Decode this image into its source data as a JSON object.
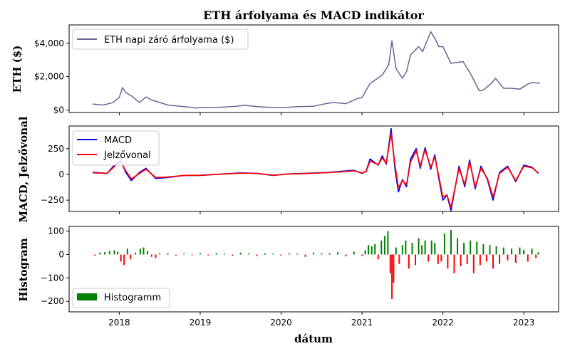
{
  "chart_data": [
    {
      "type": "line",
      "title": "ETH árfolyama és MACD indikátor",
      "ylabel": "ETH ($)",
      "ylim": [
        -150,
        5100
      ],
      "y_ticks": [
        "$0",
        "$2,000",
        "$4,000"
      ],
      "y_tick_values": [
        0,
        2000,
        4000
      ],
      "legend_position": "top-left",
      "series": [
        {
          "name": "ETH napi záró árfolyama ($)",
          "color": "#6b6394",
          "x": [
            2017.67,
            2017.8,
            2017.92,
            2018.0,
            2018.04,
            2018.08,
            2018.15,
            2018.25,
            2018.33,
            2018.4,
            2018.5,
            2018.6,
            2018.75,
            2018.85,
            2018.95,
            2019.0,
            2019.2,
            2019.45,
            2019.55,
            2019.7,
            2019.85,
            2020.0,
            2020.2,
            2020.4,
            2020.55,
            2020.65,
            2020.8,
            2020.95,
            2021.0,
            2021.1,
            2021.15,
            2021.25,
            2021.33,
            2021.37,
            2021.42,
            2021.5,
            2021.55,
            2021.6,
            2021.7,
            2021.75,
            2021.85,
            2021.9,
            2021.95,
            2022.0,
            2022.1,
            2022.25,
            2022.35,
            2022.45,
            2022.5,
            2022.6,
            2022.65,
            2022.75,
            2022.85,
            2022.95,
            2023.05,
            2023.1,
            2023.2
          ],
          "values": [
            360,
            300,
            440,
            750,
            1350,
            1050,
            850,
            450,
            780,
            600,
            450,
            300,
            220,
            180,
            120,
            140,
            150,
            220,
            280,
            210,
            160,
            130,
            200,
            220,
            380,
            450,
            380,
            700,
            750,
            1600,
            1750,
            2100,
            2700,
            4150,
            2500,
            1900,
            2300,
            3300,
            3800,
            3500,
            4700,
            4300,
            3800,
            3800,
            2800,
            2900,
            2100,
            1150,
            1200,
            1600,
            1900,
            1300,
            1300,
            1250,
            1550,
            1650,
            1600
          ]
        }
      ]
    },
    {
      "type": "line",
      "ylabel": "MACD, Jelzővonal",
      "ylim": [
        -360,
        470
      ],
      "y_ticks": [
        "−250",
        "0",
        "250"
      ],
      "y_tick_values": [
        -250,
        0,
        250
      ],
      "legend_position": "top-left",
      "series": [
        {
          "name": "MACD",
          "color": "#0000ff",
          "x": [
            2017.67,
            2017.85,
            2017.95,
            2018.02,
            2018.08,
            2018.15,
            2018.25,
            2018.33,
            2018.45,
            2018.6,
            2018.8,
            2019.0,
            2019.3,
            2019.5,
            2019.7,
            2019.9,
            2020.1,
            2020.3,
            2020.6,
            2020.75,
            2020.9,
            2021.0,
            2021.05,
            2021.1,
            2021.2,
            2021.25,
            2021.3,
            2021.36,
            2021.41,
            2021.45,
            2021.5,
            2021.55,
            2021.6,
            2021.67,
            2021.72,
            2021.78,
            2021.85,
            2021.9,
            2021.95,
            2022.0,
            2022.05,
            2022.1,
            2022.2,
            2022.27,
            2022.33,
            2022.4,
            2022.47,
            2022.55,
            2022.62,
            2022.7,
            2022.8,
            2022.9,
            2023.0,
            2023.1,
            2023.18
          ],
          "values": [
            20,
            10,
            100,
            130,
            20,
            -60,
            20,
            60,
            -40,
            -30,
            -10,
            -10,
            5,
            15,
            10,
            -10,
            5,
            10,
            20,
            30,
            40,
            10,
            30,
            150,
            90,
            180,
            100,
            445,
            40,
            -170,
            -50,
            -120,
            150,
            250,
            60,
            260,
            50,
            190,
            -40,
            -250,
            -200,
            -350,
            80,
            -120,
            140,
            -140,
            80,
            -50,
            -250,
            20,
            80,
            -70,
            90,
            70,
            10
          ]
        },
        {
          "name": "Jelzővonal",
          "color": "#ff0000",
          "x": [
            2017.67,
            2017.85,
            2017.95,
            2018.02,
            2018.08,
            2018.15,
            2018.25,
            2018.33,
            2018.45,
            2018.6,
            2018.8,
            2019.0,
            2019.3,
            2019.5,
            2019.7,
            2019.9,
            2020.1,
            2020.3,
            2020.6,
            2020.75,
            2020.9,
            2021.0,
            2021.05,
            2021.1,
            2021.2,
            2021.25,
            2021.3,
            2021.36,
            2021.41,
            2021.45,
            2021.5,
            2021.55,
            2021.6,
            2021.67,
            2021.72,
            2021.78,
            2021.85,
            2021.9,
            2021.95,
            2022.0,
            2022.05,
            2022.1,
            2022.2,
            2022.27,
            2022.33,
            2022.4,
            2022.47,
            2022.55,
            2022.62,
            2022.7,
            2022.8,
            2022.9,
            2023.0,
            2023.1,
            2023.18
          ],
          "values": [
            15,
            10,
            85,
            120,
            35,
            -45,
            10,
            50,
            -30,
            -25,
            -10,
            -8,
            4,
            12,
            10,
            -8,
            4,
            8,
            18,
            25,
            35,
            15,
            25,
            130,
            95,
            160,
            110,
            400,
            80,
            -130,
            -60,
            -100,
            120,
            230,
            80,
            240,
            70,
            170,
            -20,
            -220,
            -200,
            -320,
            60,
            -100,
            120,
            -120,
            60,
            -40,
            -220,
            10,
            70,
            -60,
            80,
            65,
            15
          ]
        }
      ]
    },
    {
      "type": "bar",
      "ylabel": "Histogram",
      "xlabel": "dátum",
      "ylim": [
        -245,
        120
      ],
      "y_ticks": [
        "−200",
        "−100",
        "0",
        "100"
      ],
      "y_tick_values": [
        -200,
        -100,
        0,
        100
      ],
      "x_ticks": [
        "2018",
        "2019",
        "2020",
        "2021",
        "2022",
        "2023"
      ],
      "x_tick_values": [
        2018,
        2019,
        2020,
        2021,
        2022,
        2023
      ],
      "legend_position": "bottom-left",
      "positive_color": "#008000",
      "negative_color": "#ff0000",
      "series": [
        {
          "name": "Histogramm",
          "color": "#008000",
          "x": [
            2017.7,
            2017.76,
            2017.82,
            2017.88,
            2017.94,
            2017.98,
            2018.02,
            2018.06,
            2018.1,
            2018.14,
            2018.2,
            2018.26,
            2018.3,
            2018.35,
            2018.4,
            2018.45,
            2018.5,
            2018.6,
            2018.7,
            2018.8,
            2018.9,
            2019.0,
            2019.1,
            2019.2,
            2019.3,
            2019.4,
            2019.5,
            2019.6,
            2019.7,
            2019.8,
            2019.9,
            2020.0,
            2020.1,
            2020.2,
            2020.3,
            2020.4,
            2020.5,
            2020.6,
            2020.7,
            2020.8,
            2020.9,
            2021.0,
            2021.04,
            2021.08,
            2021.12,
            2021.16,
            2021.2,
            2021.24,
            2021.28,
            2021.32,
            2021.35,
            2021.37,
            2021.39,
            2021.42,
            2021.46,
            2021.5,
            2021.54,
            2021.58,
            2021.62,
            2021.66,
            2021.7,
            2021.74,
            2021.78,
            2021.82,
            2021.86,
            2021.9,
            2021.94,
            2021.98,
            2022.02,
            2022.06,
            2022.1,
            2022.14,
            2022.18,
            2022.22,
            2022.26,
            2022.3,
            2022.34,
            2022.38,
            2022.42,
            2022.46,
            2022.5,
            2022.54,
            2022.58,
            2022.62,
            2022.66,
            2022.7,
            2022.75,
            2022.8,
            2022.85,
            2022.9,
            2022.95,
            2023.0,
            2023.05,
            2023.1,
            2023.15,
            2023.18
          ],
          "values": [
            -5,
            8,
            10,
            15,
            18,
            12,
            -30,
            -45,
            25,
            -20,
            8,
            25,
            30,
            15,
            -10,
            -15,
            5,
            6,
            -4,
            4,
            -3,
            5,
            -4,
            6,
            4,
            -5,
            8,
            5,
            -6,
            6,
            4,
            -5,
            5,
            4,
            -10,
            8,
            5,
            6,
            10,
            -8,
            12,
            -6,
            18,
            40,
            35,
            45,
            -20,
            60,
            80,
            100,
            -80,
            -190,
            -120,
            30,
            -40,
            40,
            60,
            -60,
            50,
            -45,
            70,
            40,
            60,
            -30,
            60,
            50,
            -40,
            -30,
            90,
            -60,
            105,
            -80,
            70,
            -50,
            50,
            -40,
            60,
            -80,
            55,
            -45,
            45,
            -30,
            40,
            -60,
            35,
            -40,
            30,
            -25,
            25,
            -35,
            30,
            20,
            -30,
            25,
            -15,
            10
          ]
        }
      ]
    }
  ]
}
